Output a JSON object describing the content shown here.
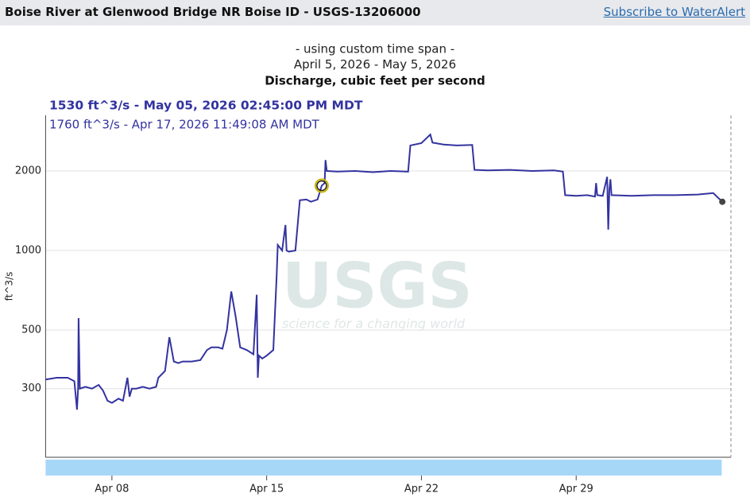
{
  "header": {
    "title": "Boise River at Glenwood Bridge NR Boise ID - USGS-13206000",
    "link": "Subscribe to WaterAlert"
  },
  "chart_data": {
    "type": "line",
    "subtitle_lines": [
      "- using custom time span -",
      "April 5, 2026 - May 5, 2026"
    ],
    "title": "Discharge, cubic feet per second",
    "tooltips": [
      "1530 ft^3/s - May 05, 2026 02:45:00 PM MDT",
      "1760 ft^3/s - Apr 17, 2026 11:49:08 AM MDT"
    ],
    "focus_point": {
      "x": 17.49,
      "y": 1760
    },
    "y_label": "ft^3/s",
    "watermark": {
      "title": "USGS",
      "tagline": "science for a changing world"
    },
    "log_y": true,
    "grid": true,
    "xlim": [
      5,
      36
    ],
    "xticks": [
      {
        "value": 8,
        "label": "Apr 08"
      },
      {
        "value": 15,
        "label": "Apr 15"
      },
      {
        "value": 22,
        "label": "Apr 22"
      },
      {
        "value": 29,
        "label": "Apr 29"
      }
    ],
    "ylim": [
      165,
      3250
    ],
    "yticks": [
      300,
      500,
      1000,
      2000
    ],
    "series": [
      {
        "name": "Discharge",
        "color": "#3333a0",
        "x": [
          5.0,
          5.5,
          6.0,
          6.3,
          6.42,
          6.47,
          6.49,
          6.55,
          6.8,
          7.1,
          7.4,
          7.6,
          7.8,
          8.0,
          8.3,
          8.5,
          8.7,
          8.8,
          8.9,
          9.1,
          9.4,
          9.7,
          10.0,
          10.1,
          10.4,
          10.6,
          10.8,
          11.0,
          11.2,
          11.6,
          12.0,
          12.3,
          12.5,
          12.8,
          13.0,
          13.2,
          13.4,
          13.6,
          13.8,
          14.1,
          14.4,
          14.55,
          14.6,
          14.65,
          14.8,
          15.0,
          15.3,
          15.45,
          15.5,
          15.7,
          15.85,
          15.9,
          16.0,
          16.3,
          16.5,
          16.8,
          17.0,
          17.3,
          17.49,
          17.62,
          17.66,
          17.72,
          18.2,
          19.0,
          19.8,
          20.6,
          21.4,
          21.5,
          22.0,
          22.4,
          22.5,
          23.0,
          23.6,
          24.3,
          24.4,
          25.0,
          26.0,
          27.0,
          28.0,
          28.4,
          28.5,
          29.0,
          29.5,
          29.85,
          29.9,
          29.95,
          30.2,
          30.4,
          30.45,
          30.5,
          30.55,
          30.6,
          31.5,
          32.5,
          33.5,
          34.5,
          35.2,
          35.61
        ],
        "values": [
          325,
          330,
          330,
          320,
          250,
          300,
          555,
          300,
          305,
          300,
          310,
          295,
          270,
          265,
          275,
          270,
          330,
          280,
          300,
          300,
          305,
          300,
          305,
          330,
          350,
          470,
          380,
          375,
          380,
          380,
          385,
          420,
          430,
          430,
          425,
          500,
          700,
          560,
          430,
          420,
          405,
          680,
          330,
          400,
          390,
          400,
          420,
          800,
          1050,
          1000,
          1250,
          1000,
          990,
          1000,
          1550,
          1560,
          1530,
          1560,
          1760,
          1800,
          2200,
          2000,
          1990,
          2000,
          1980,
          2000,
          1990,
          2500,
          2550,
          2750,
          2560,
          2520,
          2500,
          2510,
          2020,
          2010,
          2020,
          2000,
          2010,
          1990,
          1620,
          1610,
          1620,
          1600,
          1800,
          1620,
          1610,
          1900,
          1200,
          1700,
          1860,
          1620,
          1610,
          1620,
          1620,
          1630,
          1650,
          1530
        ]
      }
    ]
  }
}
